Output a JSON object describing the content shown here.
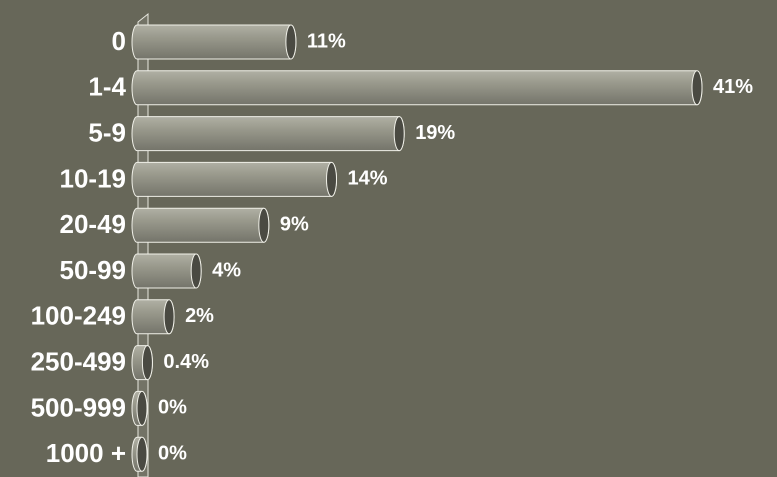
{
  "chart_data": {
    "type": "bar",
    "orientation": "horizontal",
    "categories": [
      "0",
      "1-4",
      "5-9",
      "10-19",
      "20-49",
      "50-99",
      "100-249",
      "250-499",
      "500-999",
      "1000 +"
    ],
    "values": [
      11,
      41,
      19,
      14,
      9,
      4,
      2,
      0.4,
      0,
      0
    ],
    "value_labels": [
      "11%",
      "41%",
      "19%",
      "14%",
      "9%",
      "4%",
      "2%",
      "0.4%",
      "0%",
      "0%"
    ],
    "color": "#8f8f82"
  }
}
